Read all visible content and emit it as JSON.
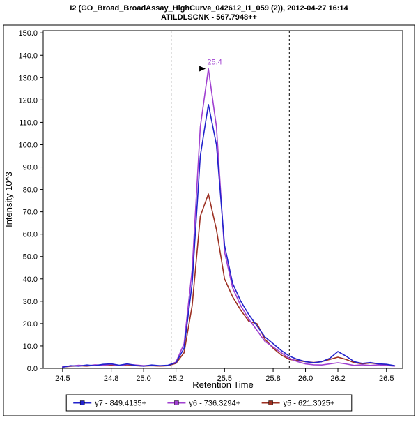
{
  "chart_data": {
    "type": "line",
    "title": "I2 (GO_Broad_BroadAssay_HighCurve_042612_I1_059 (2)), 2012-04-27 16:14",
    "subtitle": "ATILDLSCNK - 567.7948++",
    "xlabel": "Retention Time",
    "ylabel": "Intensity 10^3",
    "xlim": [
      24.38,
      26.6
    ],
    "ylim": [
      0,
      151
    ],
    "xticks": [
      24.5,
      24.8,
      25.0,
      25.2,
      25.5,
      25.8,
      26.0,
      26.2,
      26.5
    ],
    "yticks": [
      0,
      10,
      20,
      30,
      40,
      50,
      60,
      70,
      80,
      90,
      100,
      110,
      120,
      130,
      140,
      150
    ],
    "grid": false,
    "legend_position": "bottom",
    "integration_boundaries": [
      25.17,
      25.9
    ],
    "peak_annotation": {
      "text": "25.4",
      "x": 25.4,
      "y": 134,
      "color": "#a040d0"
    },
    "x": [
      24.5,
      24.55,
      24.6,
      24.65,
      24.7,
      24.75,
      24.8,
      24.85,
      24.9,
      24.95,
      25.0,
      25.05,
      25.1,
      25.15,
      25.2,
      25.25,
      25.3,
      25.35,
      25.4,
      25.45,
      25.5,
      25.55,
      25.6,
      25.65,
      25.7,
      25.75,
      25.8,
      25.85,
      25.9,
      25.95,
      26.0,
      26.05,
      26.1,
      26.15,
      26.2,
      26.25,
      26.3,
      26.35,
      26.4,
      26.45,
      26.5,
      26.55
    ],
    "series": [
      {
        "name": "y5 - 621.3025+",
        "color": "#9c3022",
        "values": [
          0.6,
          0.9,
          1.2,
          1.0,
          1.4,
          1.6,
          1.5,
          1.2,
          1.6,
          1.2,
          1.0,
          1.2,
          1.0,
          1.2,
          2.2,
          7,
          28,
          68,
          78,
          62,
          40,
          32,
          26,
          21,
          20,
          13,
          9,
          6,
          4,
          3.5,
          3,
          2.6,
          3,
          4,
          5,
          4,
          2.6,
          2,
          2.4,
          2,
          1.6,
          1.2
        ]
      },
      {
        "name": "y6 - 736.3294+",
        "color": "#a040d0",
        "values": [
          0.8,
          1.0,
          1.4,
          1.1,
          1.6,
          1.4,
          1.8,
          1.2,
          1.8,
          1.5,
          1.2,
          1.3,
          1.1,
          1.3,
          2.8,
          11,
          44,
          108,
          134,
          108,
          52,
          36,
          28,
          22,
          17,
          12,
          9.5,
          7,
          4.5,
          3,
          2,
          1.6,
          1.5,
          2,
          2.5,
          2,
          1.3,
          1.6,
          1.3,
          1.6,
          1.3,
          1.0
        ]
      },
      {
        "name": "y7 - 849.4135+",
        "color": "#2222cc",
        "values": [
          0.5,
          1.2,
          1.0,
          1.5,
          1.2,
          1.8,
          2.0,
          1.4,
          2.0,
          1.3,
          1.0,
          1.5,
          1.2,
          1.4,
          2.5,
          9,
          38,
          95,
          118,
          100,
          55,
          38,
          30,
          24,
          19,
          14,
          11,
          8,
          5.5,
          4,
          3,
          2.5,
          3,
          4.5,
          7.5,
          5.5,
          3,
          2.2,
          2.6,
          2,
          1.8,
          1.2
        ]
      }
    ],
    "legend_order": [
      "y7 - 849.4135+",
      "y6 - 736.3294+",
      "y5 - 621.3025+"
    ]
  }
}
